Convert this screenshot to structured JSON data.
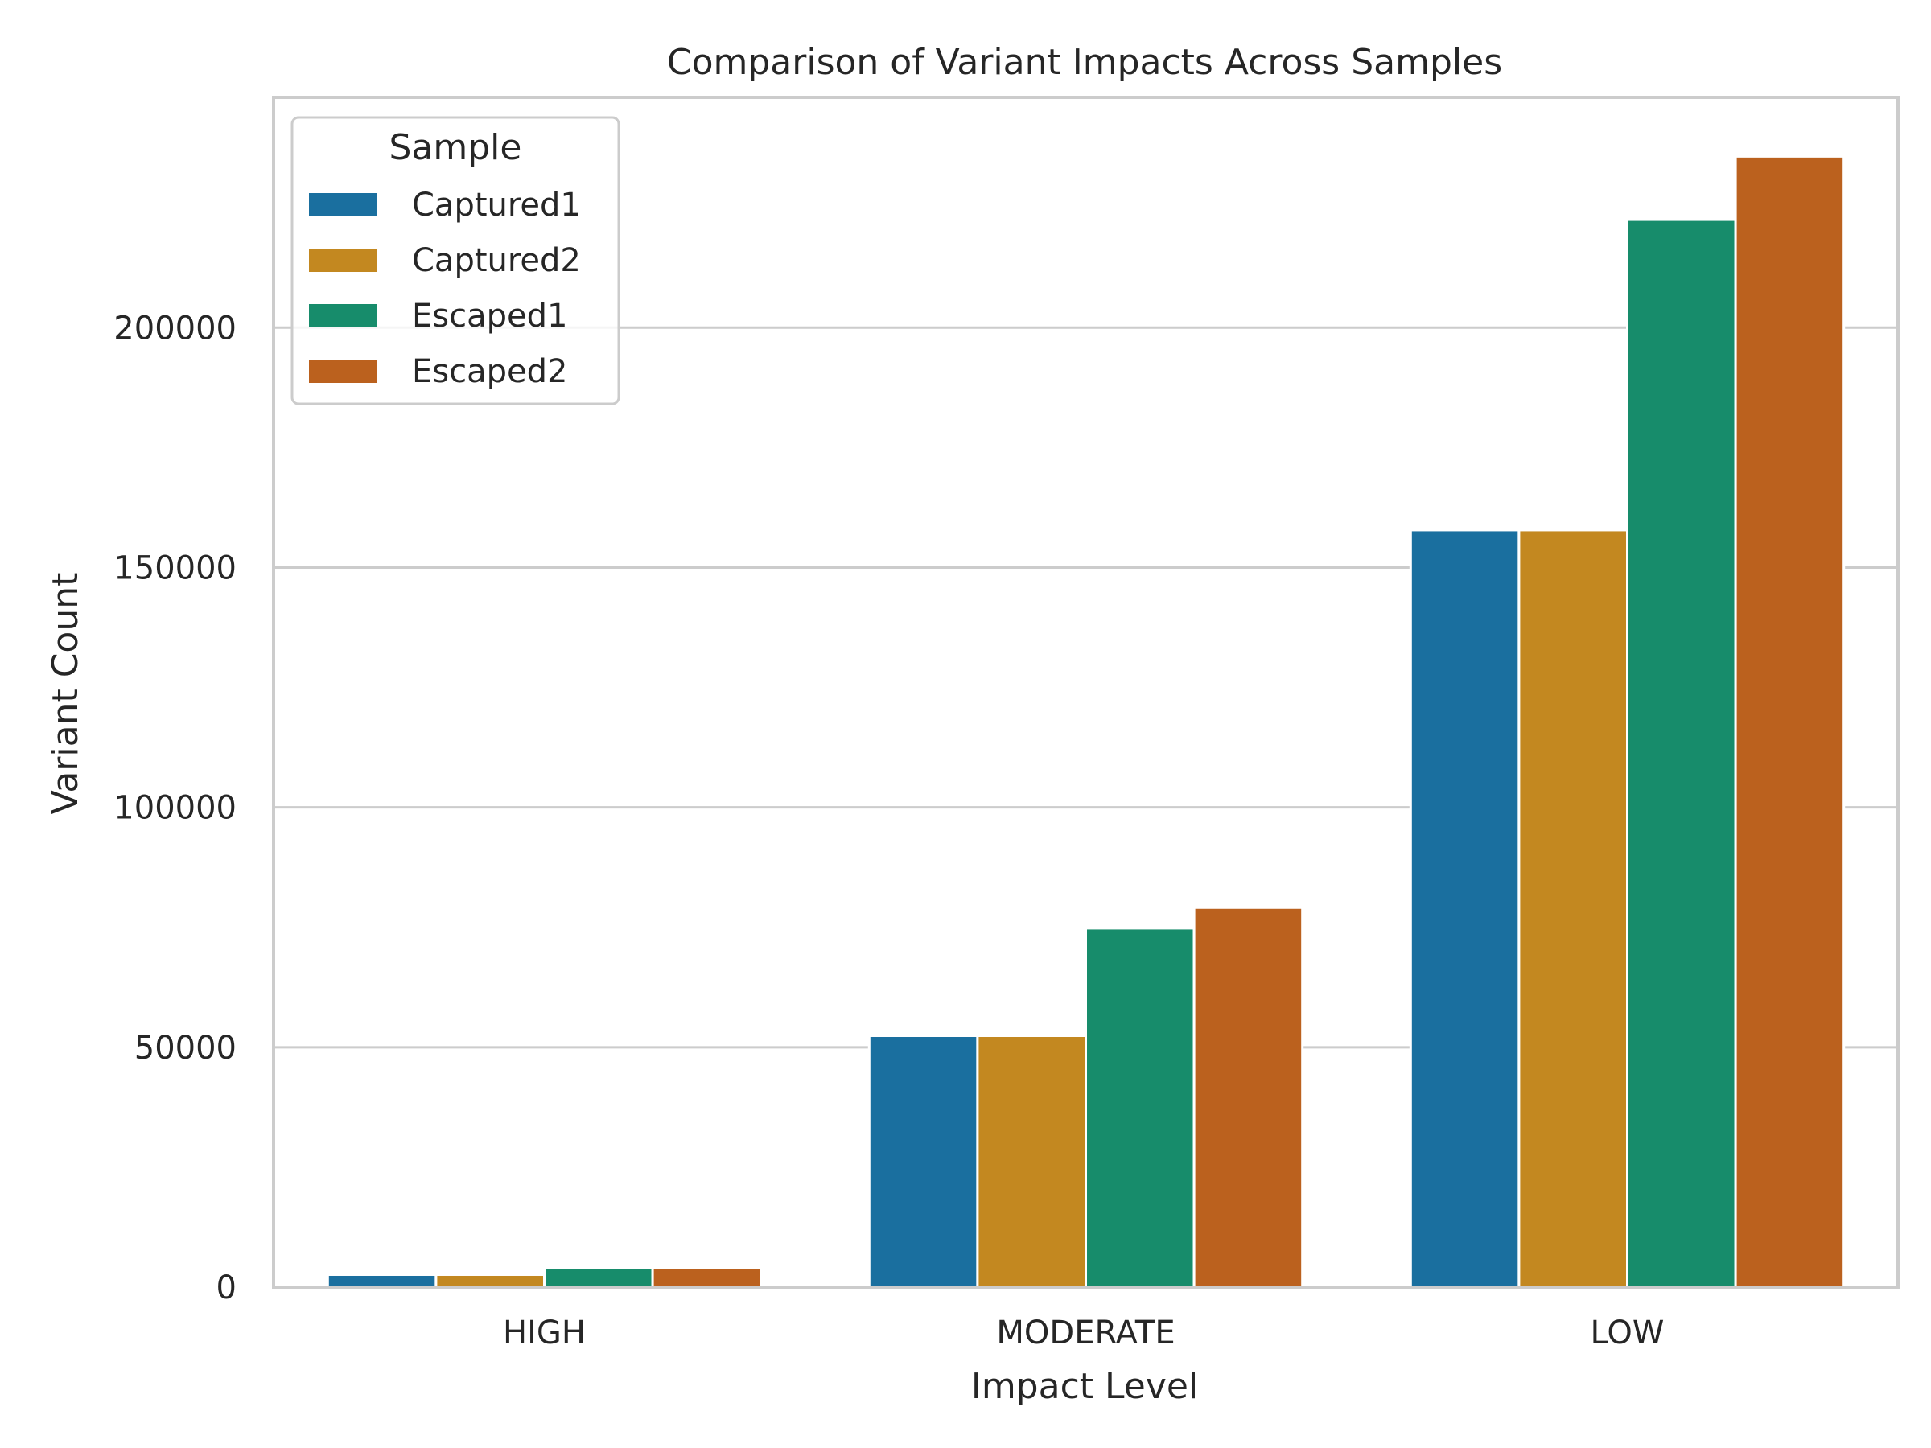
{
  "chart_data": {
    "type": "bar",
    "title": "Comparison of Variant Impacts Across Samples",
    "xlabel": "Impact Level",
    "ylabel": "Variant Count",
    "categories": [
      "HIGH",
      "MODERATE",
      "LOW"
    ],
    "series": [
      {
        "name": "Captured1",
        "color": "#1a6f9f",
        "values": [
          2600,
          52400,
          157800
        ]
      },
      {
        "name": "Captured2",
        "color": "#c38820",
        "values": [
          2600,
          52400,
          157800
        ]
      },
      {
        "name": "Escaped1",
        "color": "#178c6b",
        "values": [
          4000,
          74800,
          222500
        ]
      },
      {
        "name": "Escaped2",
        "color": "#bb611e",
        "values": [
          4000,
          79100,
          235700
        ]
      }
    ],
    "ylim": [
      0,
      248000
    ],
    "yticks": [
      "0",
      "50000",
      "100000",
      "150000",
      "200000"
    ],
    "ytick_values": [
      0,
      50000,
      100000,
      150000,
      200000
    ],
    "grid": true,
    "legend": {
      "title": "Sample",
      "placement": "top-left"
    }
  }
}
